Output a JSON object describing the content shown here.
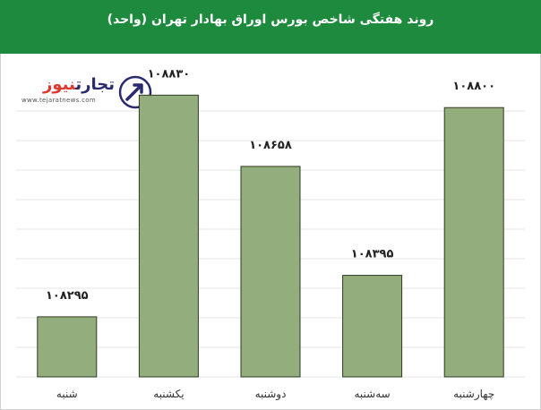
{
  "chart_data": {
    "type": "bar",
    "title": "روند هفتگی شاخص بورس اوراق بهادار تهران (واحد)",
    "categories": [
      "شنبه",
      "یکشنبه",
      "دوشنبه",
      "سه‌شنبه",
      "چهارشنبه"
    ],
    "values": [
      108295,
      108830,
      108658,
      108395,
      108800
    ],
    "value_labels": [
      "۱۰۸۲۹۵",
      "۱۰۸۸۳۰",
      "۱۰۸۶۵۸",
      "۱۰۸۳۹۵",
      "۱۰۸۸۰۰"
    ],
    "xlabel": "",
    "ylabel": "",
    "ylim": [
      108150,
      108930
    ],
    "grid": true,
    "colors": {
      "bar": "#93ad7c",
      "bar_outline": "#2d3a22",
      "header": "#1e8a3e",
      "grid": "#e2e6ea"
    }
  },
  "logo": {
    "name_part1": "تجارت",
    "name_part2": "نیوز",
    "url": "www.tejaratnews.com",
    "icon": "tejaratnews-logo-icon"
  }
}
